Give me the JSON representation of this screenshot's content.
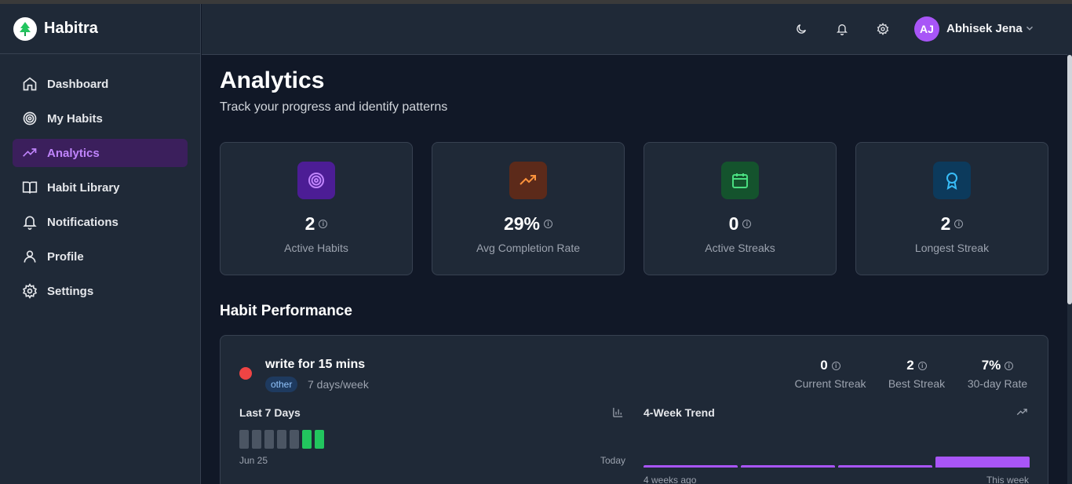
{
  "app": {
    "name": "Habitra"
  },
  "sidebar": {
    "items": [
      {
        "label": "Dashboard",
        "icon": "home-icon"
      },
      {
        "label": "My Habits",
        "icon": "target-icon"
      },
      {
        "label": "Analytics",
        "icon": "trending-up-icon",
        "active": true
      },
      {
        "label": "Habit Library",
        "icon": "book-open-icon"
      },
      {
        "label": "Notifications",
        "icon": "bell-icon"
      },
      {
        "label": "Profile",
        "icon": "user-icon"
      },
      {
        "label": "Settings",
        "icon": "gear-icon"
      }
    ]
  },
  "topbar": {
    "user": {
      "initials": "AJ",
      "name": "Abhisek Jena"
    }
  },
  "page": {
    "title": "Analytics",
    "subtitle": "Track your progress and identify patterns"
  },
  "stats": [
    {
      "value": "2",
      "label": "Active Habits",
      "icon": "target-icon",
      "color": "#c084fc"
    },
    {
      "value": "29%",
      "label": "Avg Completion Rate",
      "icon": "trending-up-icon",
      "color": "#fb923c"
    },
    {
      "value": "0",
      "label": "Active Streaks",
      "icon": "calendar-icon",
      "color": "#4ade80"
    },
    {
      "value": "2",
      "label": "Longest Streak",
      "icon": "award-icon",
      "color": "#38bdf8"
    }
  ],
  "performance": {
    "title": "Habit Performance",
    "habit": {
      "name": "write for 15 mins",
      "tag": "other",
      "frequency": "7 days/week",
      "dot_color": "#ef4444",
      "stats": [
        {
          "value": "0",
          "label": "Current Streak"
        },
        {
          "value": "2",
          "label": "Best Streak"
        },
        {
          "value": "7%",
          "label": "30-day Rate"
        }
      ],
      "last7": {
        "title": "Last 7 Days",
        "days_completed": [
          false,
          false,
          false,
          false,
          false,
          true,
          true
        ],
        "start_label": "Jun 25",
        "end_label": "Today"
      },
      "trend": {
        "title": "4-Week Trend",
        "values": [
          0.2,
          0.2,
          0.2,
          1.0
        ],
        "start_label": "4 weeks ago",
        "end_label": "This week"
      }
    }
  }
}
